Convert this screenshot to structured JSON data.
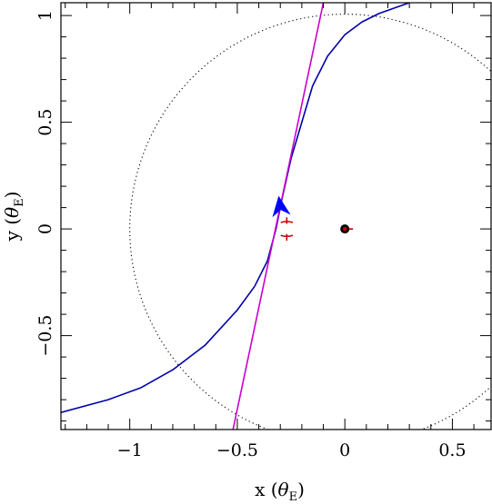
{
  "chart_data": {
    "type": "line",
    "x_axis": {
      "label": "x",
      "unit_symbol": "θ",
      "unit_subscript": "E",
      "range": [
        -1.32,
        0.68
      ],
      "ticks": [
        -1,
        -0.5,
        0,
        0.5
      ],
      "tick_labels": [
        "−1",
        "−0.5",
        "0",
        "0.5"
      ]
    },
    "y_axis": {
      "label": "y",
      "unit_symbol": "θ",
      "unit_subscript": "E",
      "range": [
        -0.94,
        1.06
      ],
      "ticks": [
        -0.5,
        0,
        0.5,
        1
      ],
      "tick_labels": [
        "−0.5",
        "0",
        "0.5",
        "1"
      ]
    },
    "grid": false,
    "legend": "none",
    "einstein_ring": {
      "cx": 0,
      "cy": 0,
      "r": 1,
      "style": "dotted",
      "color": "#000000"
    },
    "lens": {
      "x": 0,
      "y": 0,
      "color": "#000000",
      "companion_color": "#cc0000"
    },
    "series": [
      {
        "style": "solid",
        "color": "#0000aa",
        "points": [
          [
            -1.32,
            -0.86
          ],
          [
            -1.1,
            -0.8
          ],
          [
            -0.95,
            -0.745
          ],
          [
            -0.8,
            -0.66
          ],
          [
            -0.65,
            -0.545
          ],
          [
            -0.5,
            -0.38
          ],
          [
            -0.42,
            -0.27
          ],
          [
            -0.36,
            -0.15
          ],
          [
            -0.32,
            0.0
          ],
          [
            -0.29,
            0.15
          ],
          [
            -0.25,
            0.33
          ],
          [
            -0.2,
            0.5
          ],
          [
            -0.15,
            0.67
          ],
          [
            -0.08,
            0.81
          ],
          [
            0.0,
            0.91
          ],
          [
            0.08,
            0.97
          ],
          [
            0.16,
            1.01
          ],
          [
            0.3,
            1.06
          ]
        ]
      },
      {
        "style": "solid",
        "color": "#cc00cc",
        "points": [
          [
            -0.52,
            -0.94
          ],
          [
            -0.1,
            1.06
          ]
        ]
      }
    ],
    "arrow": {
      "x": -0.3,
      "y": 0.1,
      "direction_deg": 262,
      "color": "#0000ff"
    },
    "caustic_points": [
      {
        "x": -0.27,
        "y": 0.035,
        "color": "#cc0000"
      },
      {
        "x": -0.27,
        "y": -0.035,
        "color": "#cc0000"
      }
    ]
  }
}
